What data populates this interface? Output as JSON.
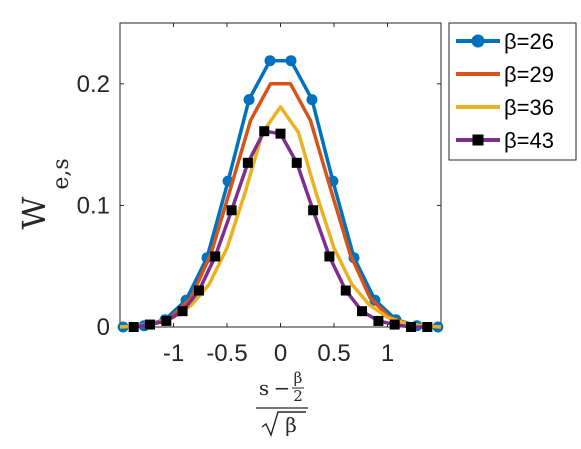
{
  "chart_data": {
    "type": "line",
    "title": "",
    "ylabel": "W",
    "ylabel_subscript": "e,s",
    "xlabel": {
      "numerator_left": "s",
      "numerator_op": "−",
      "numerator_frac_num": "β",
      "numerator_frac_den": "2",
      "denominator": "β"
    },
    "xlim": [
      -1.5,
      1.5
    ],
    "ylim": [
      0,
      0.25
    ],
    "xticks": [
      -1,
      -0.5,
      0,
      0.5,
      1
    ],
    "xtick_labels": [
      "-1",
      "-0.5",
      "0",
      "0.5",
      "1"
    ],
    "yticks": [
      0,
      0.1,
      0.2
    ],
    "ytick_labels": [
      "0",
      "0.1",
      "0.2"
    ],
    "grid": false,
    "legend_position": "outside-top-right",
    "series": [
      {
        "name": "β=26",
        "color": "#0072BD",
        "marker": "circle",
        "x": [
          -1.471,
          -1.275,
          -1.079,
          -0.883,
          -0.687,
          -0.49,
          -0.294,
          -0.098,
          0.098,
          0.294,
          0.49,
          0.687,
          0.883,
          1.079,
          1.275,
          1.471
        ],
        "y": [
          0.0,
          0.001,
          0.006,
          0.022,
          0.057,
          0.12,
          0.187,
          0.219,
          0.219,
          0.187,
          0.12,
          0.057,
          0.022,
          0.006,
          0.001,
          0.0
        ]
      },
      {
        "name": "β=29",
        "color": "#D95319",
        "marker": "none",
        "x": [
          -1.393,
          -1.207,
          -1.021,
          -0.836,
          -0.65,
          -0.464,
          -0.279,
          -0.093,
          0.093,
          0.279,
          0.464,
          0.65,
          0.836,
          1.021,
          1.207,
          1.393
        ],
        "y": [
          0.0,
          0.002,
          0.008,
          0.024,
          0.06,
          0.115,
          0.17,
          0.2,
          0.2,
          0.17,
          0.115,
          0.06,
          0.024,
          0.008,
          0.002,
          0.0
        ]
      },
      {
        "name": "β=36",
        "color": "#EDB120",
        "marker": "none",
        "x": [
          -1.5,
          -1.333,
          -1.167,
          -1.0,
          -0.833,
          -0.667,
          -0.5,
          -0.333,
          -0.167,
          0.0,
          0.167,
          0.333,
          0.5,
          0.667,
          0.833,
          1.0,
          1.167,
          1.333,
          1.5
        ],
        "y": [
          0.0,
          0.001,
          0.003,
          0.008,
          0.018,
          0.035,
          0.065,
          0.11,
          0.16,
          0.181,
          0.16,
          0.11,
          0.065,
          0.035,
          0.018,
          0.008,
          0.003,
          0.001,
          0.0
        ]
      },
      {
        "name": "β=43",
        "color": "#7E2F8E",
        "marker": "square",
        "x": [
          -1.372,
          -1.22,
          -1.067,
          -0.915,
          -0.762,
          -0.61,
          -0.457,
          -0.305,
          -0.152,
          0.0,
          0.152,
          0.305,
          0.457,
          0.61,
          0.762,
          0.915,
          1.067,
          1.22,
          1.372
        ],
        "y": [
          0.0,
          0.002,
          0.005,
          0.013,
          0.03,
          0.058,
          0.096,
          0.135,
          0.161,
          0.159,
          0.135,
          0.096,
          0.058,
          0.03,
          0.013,
          0.005,
          0.002,
          0.0,
          0.0
        ]
      }
    ]
  }
}
